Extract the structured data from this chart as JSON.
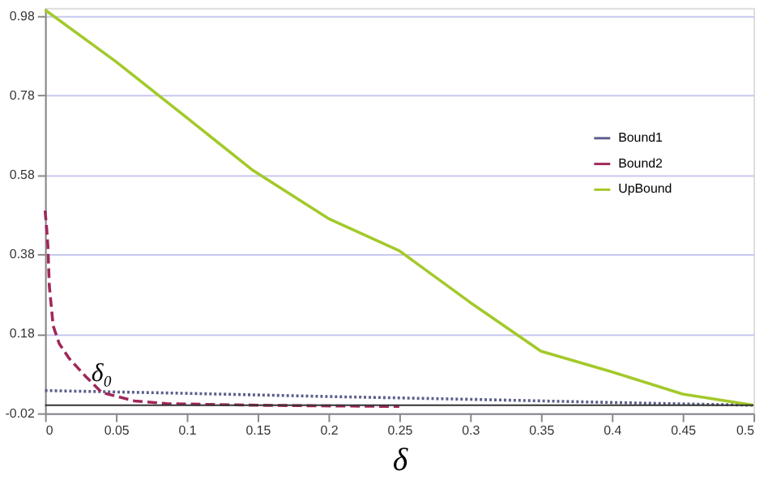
{
  "chart_data": {
    "type": "line",
    "xlabel": "δ",
    "series": [
      {
        "name": "Bound1",
        "color": "#5b5f8c",
        "line_style": "dotted",
        "x": [
          0,
          0.1,
          0.2,
          0.3,
          0.4,
          0.5
        ],
        "values": [
          0.037,
          0.03,
          0.022,
          0.015,
          0.007,
          0.0
        ]
      },
      {
        "name": "Bound2",
        "color": "#a0285a",
        "line_style": "dashed",
        "x": [
          0,
          0.001,
          0.002,
          0.003,
          0.0057,
          0.01,
          0.017,
          0.0285,
          0.04,
          0.063,
          0.086,
          0.15,
          0.25
        ],
        "values": [
          0.49,
          0.45,
          0.4,
          0.3,
          0.2,
          0.155,
          0.118,
          0.073,
          0.032,
          0.011,
          0.004,
          0.0,
          -0.003
        ]
      },
      {
        "name": "UpBound",
        "color": "#a3c92a",
        "line_style": "solid",
        "x": [
          0,
          0.05,
          0.1,
          0.146,
          0.2,
          0.25,
          0.3,
          0.35,
          0.4,
          0.45,
          0.5
        ],
        "values": [
          0.995,
          0.865,
          0.724,
          0.593,
          0.47,
          0.389,
          0.259,
          0.136,
          0.084,
          0.028,
          0.0
        ]
      }
    ],
    "xlim": [
      0,
      0.5
    ],
    "xticks": [
      0,
      0.05,
      0.1,
      0.15,
      0.2,
      0.25,
      0.3,
      0.35,
      0.4,
      0.45,
      0.5
    ],
    "ylim": [
      -0.02,
      1.0
    ],
    "yticks": [
      -0.02,
      0.18,
      0.38,
      0.58,
      0.78,
      0.98
    ],
    "ref_lines": [
      {
        "axis": "y",
        "value": 0,
        "color": "#333333"
      }
    ],
    "annotations": [
      {
        "text": "δ₀",
        "x": 0.04,
        "y": 0.032
      }
    ],
    "grid": "y",
    "legend": "right",
    "marker": "none"
  }
}
